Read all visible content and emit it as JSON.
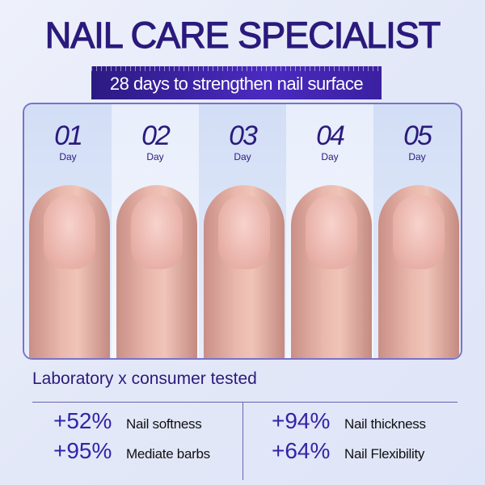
{
  "title": "NAIL CARE SPECIALIST",
  "subtitle": "28 days to strengthen nail surface",
  "days": [
    {
      "number": "01",
      "label": "Day"
    },
    {
      "number": "02",
      "label": "Day"
    },
    {
      "number": "03",
      "label": "Day"
    },
    {
      "number": "04",
      "label": "Day"
    },
    {
      "number": "05",
      "label": "Day"
    }
  ],
  "tested_heading": "Laboratory x consumer tested",
  "stats": [
    {
      "value": "+52%",
      "label": "Nail softness"
    },
    {
      "value": "+95%",
      "label": "Mediate barbs"
    },
    {
      "value": "+94%",
      "label": "Nail thickness"
    },
    {
      "value": "+64%",
      "label": "Nail Flexibility"
    }
  ]
}
